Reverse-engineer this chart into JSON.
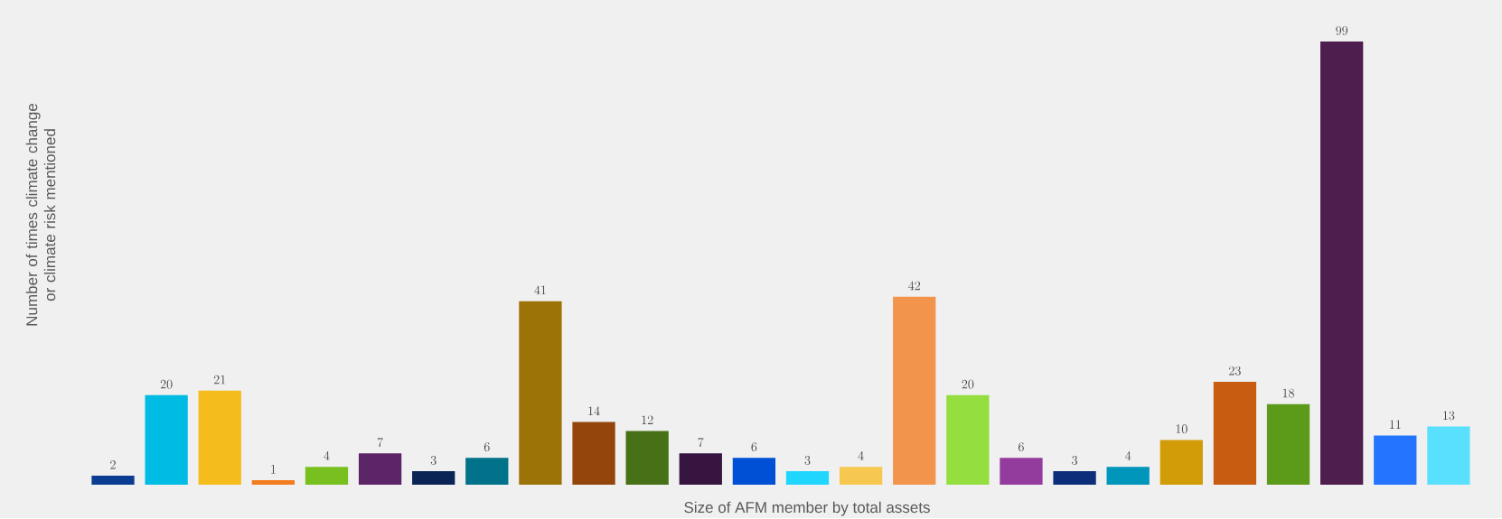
{
  "chart_data": {
    "type": "bar",
    "xlabel": "Size of AFM member by total assets",
    "ylabel": "Number of times climate change or climate risk mentioned",
    "categories": [
      null,
      null,
      null,
      null,
      null,
      null,
      null,
      null,
      null,
      null,
      null,
      null,
      null,
      null,
      null,
      null,
      null,
      null,
      null,
      null,
      null,
      null,
      null,
      null,
      null,
      null
    ],
    "values": [
      2,
      20,
      21,
      1,
      4,
      7,
      3,
      6,
      41,
      14,
      12,
      7,
      6,
      3,
      4,
      42,
      20,
      6,
      3,
      4,
      10,
      23,
      18,
      99,
      11,
      13
    ],
    "colors": [
      "#0a3d91",
      "#00bce4",
      "#f4bc1c",
      "#f47c20",
      "#78c020",
      "#5c2568",
      "#0a2456",
      "#00728a",
      "#9c7306",
      "#94450c",
      "#477116",
      "#361640",
      "#0050d6",
      "#20d6ff",
      "#f6c850",
      "#f2944c",
      "#94de40",
      "#943c9e",
      "#0c2e7a",
      "#0096bc",
      "#d29c08",
      "#c85c10",
      "#5c9a1a",
      "#4e1e4e",
      "#2474ff",
      "#5ae0ff"
    ],
    "data_labels": true
  }
}
